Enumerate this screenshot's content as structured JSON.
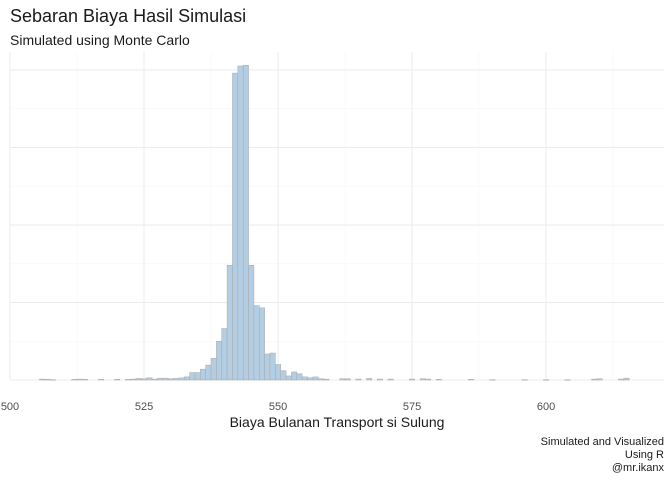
{
  "chart_data": {
    "type": "bar",
    "title": "Sebaran Biaya Hasil Simulasi",
    "subtitle": "Simulated using Monte Carlo",
    "xlabel": "Biaya Bulanan Transport si Sulung",
    "ylabel": "",
    "xlim": [
      500,
      622
    ],
    "ylim": [
      0,
      1000
    ],
    "x_ticks": [
      "500",
      "525",
      "550",
      "575",
      "600"
    ],
    "x_tick_values": [
      500,
      525,
      550,
      575,
      600
    ],
    "grid": true,
    "bin_width": 1,
    "bins": [
      {
        "x": 506,
        "count": 3
      },
      {
        "x": 507,
        "count": 2
      },
      {
        "x": 508,
        "count": 1
      },
      {
        "x": 512,
        "count": 2
      },
      {
        "x": 513,
        "count": 3
      },
      {
        "x": 514,
        "count": 2
      },
      {
        "x": 517,
        "count": 2
      },
      {
        "x": 520,
        "count": 2
      },
      {
        "x": 522,
        "count": 2
      },
      {
        "x": 523,
        "count": 3
      },
      {
        "x": 524,
        "count": 5
      },
      {
        "x": 525,
        "count": 4
      },
      {
        "x": 526,
        "count": 7
      },
      {
        "x": 527,
        "count": 3
      },
      {
        "x": 528,
        "count": 6
      },
      {
        "x": 529,
        "count": 6
      },
      {
        "x": 530,
        "count": 4
      },
      {
        "x": 531,
        "count": 5
      },
      {
        "x": 532,
        "count": 7
      },
      {
        "x": 533,
        "count": 10
      },
      {
        "x": 534,
        "count": 24
      },
      {
        "x": 535,
        "count": 24
      },
      {
        "x": 536,
        "count": 35
      },
      {
        "x": 537,
        "count": 48
      },
      {
        "x": 538,
        "count": 70
      },
      {
        "x": 539,
        "count": 125
      },
      {
        "x": 540,
        "count": 166
      },
      {
        "x": 541,
        "count": 370
      },
      {
        "x": 542,
        "count": 990
      },
      {
        "x": 543,
        "count": 1013
      },
      {
        "x": 544,
        "count": 1015
      },
      {
        "x": 545,
        "count": 370
      },
      {
        "x": 546,
        "count": 240
      },
      {
        "x": 547,
        "count": 233
      },
      {
        "x": 548,
        "count": 84
      },
      {
        "x": 549,
        "count": 87
      },
      {
        "x": 550,
        "count": 50
      },
      {
        "x": 551,
        "count": 30
      },
      {
        "x": 552,
        "count": 13
      },
      {
        "x": 553,
        "count": 26
      },
      {
        "x": 554,
        "count": 20
      },
      {
        "x": 555,
        "count": 10
      },
      {
        "x": 556,
        "count": 7
      },
      {
        "x": 557,
        "count": 10
      },
      {
        "x": 558,
        "count": 4
      },
      {
        "x": 559,
        "count": 3
      },
      {
        "x": 562,
        "count": 4
      },
      {
        "x": 563,
        "count": 4
      },
      {
        "x": 565,
        "count": 3
      },
      {
        "x": 567,
        "count": 5
      },
      {
        "x": 569,
        "count": 3
      },
      {
        "x": 571,
        "count": 3
      },
      {
        "x": 575,
        "count": 3
      },
      {
        "x": 577,
        "count": 4
      },
      {
        "x": 578,
        "count": 3
      },
      {
        "x": 580,
        "count": 2
      },
      {
        "x": 586,
        "count": 2
      },
      {
        "x": 590,
        "count": 1
      },
      {
        "x": 596,
        "count": 1
      },
      {
        "x": 600,
        "count": 1
      },
      {
        "x": 604,
        "count": 1
      },
      {
        "x": 609,
        "count": 3
      },
      {
        "x": 610,
        "count": 4
      },
      {
        "x": 614,
        "count": 3
      },
      {
        "x": 615,
        "count": 6
      }
    ],
    "fill_color": "#b3cde3",
    "edge_color": "#a9a9a9"
  },
  "caption": {
    "line1": "Simulated and Visualized",
    "line2": "Using R",
    "line3": "@mr.ikanx"
  },
  "colors": {
    "grid_major": "#ebebeb",
    "grid_minor": "#f5f5f5",
    "text": "#1a1a1a"
  }
}
